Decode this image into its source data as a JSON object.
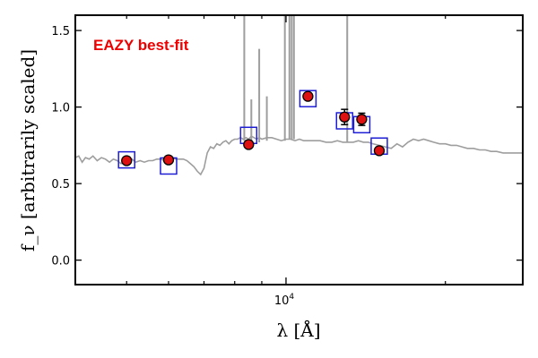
{
  "chart_data": {
    "type": "scatter",
    "annotation": "EAZY best-fit",
    "ylabel": "f_ν [arbitrarily scaled]",
    "xlabel": "λ [Å]",
    "xscale": "log",
    "xlim": [
      4000,
      28000
    ],
    "ylim": [
      -0.16,
      1.6
    ],
    "yticks": [
      0.0,
      0.5,
      1.0,
      1.5
    ],
    "ytick_labels": [
      "0.0",
      "0.5",
      "1.0",
      "1.5"
    ],
    "xticks_major": [
      10000
    ],
    "xtick_base": "10",
    "xtick_exp": "4",
    "xticks_minor": [
      5000,
      6000,
      7000,
      8000,
      9000,
      20000
    ],
    "colors": {
      "sed": "#9e9e9e",
      "model": "#1f1fd6",
      "obs_fill": "#dd1111",
      "obs_edge": "#000000",
      "annotation": "#ee0000"
    },
    "sed": {
      "x": [
        4000,
        4060,
        4120,
        4180,
        4250,
        4320,
        4400,
        4480,
        4560,
        4640,
        4720,
        4800,
        4880,
        4960,
        5040,
        5120,
        5200,
        5300,
        5400,
        5500,
        5600,
        5700,
        5800,
        5900,
        6000,
        6100,
        6200,
        6300,
        6400,
        6500,
        6600,
        6700,
        6800,
        6900,
        7000,
        7100,
        7200,
        7300,
        7400,
        7500,
        7600,
        7700,
        7800,
        7900,
        8000,
        8100,
        8200,
        8300,
        8400,
        8500,
        8600,
        8700,
        8800,
        8900,
        9000,
        9200,
        9400,
        9600,
        9800,
        10000,
        10200,
        10400,
        10600,
        10800,
        11000,
        11300,
        11600,
        11900,
        12200,
        12500,
        12800,
        13100,
        13400,
        13700,
        14000,
        14300,
        14600,
        15000,
        15400,
        15800,
        16200,
        16600,
        17000,
        17400,
        17800,
        18200,
        18600,
        19000,
        19500,
        20000,
        20500,
        21000,
        21500,
        22000,
        22600,
        23200,
        23800,
        24400,
        25000,
        25700,
        26400,
        27200,
        28000
      ],
      "y": [
        0.67,
        0.68,
        0.64,
        0.67,
        0.66,
        0.68,
        0.65,
        0.67,
        0.66,
        0.64,
        0.66,
        0.65,
        0.63,
        0.65,
        0.64,
        0.66,
        0.64,
        0.65,
        0.64,
        0.65,
        0.65,
        0.66,
        0.66,
        0.65,
        0.66,
        0.67,
        0.66,
        0.66,
        0.66,
        0.65,
        0.63,
        0.61,
        0.58,
        0.56,
        0.6,
        0.7,
        0.74,
        0.73,
        0.76,
        0.75,
        0.77,
        0.78,
        0.76,
        0.78,
        0.79,
        0.79,
        0.8,
        0.79,
        0.8,
        0.79,
        0.81,
        0.8,
        0.79,
        0.8,
        0.79,
        0.8,
        0.8,
        0.79,
        0.78,
        0.79,
        0.79,
        0.78,
        0.79,
        0.78,
        0.78,
        0.78,
        0.78,
        0.77,
        0.77,
        0.78,
        0.77,
        0.77,
        0.77,
        0.78,
        0.77,
        0.77,
        0.76,
        0.75,
        0.74,
        0.73,
        0.76,
        0.74,
        0.77,
        0.79,
        0.78,
        0.79,
        0.78,
        0.77,
        0.76,
        0.76,
        0.75,
        0.75,
        0.74,
        0.73,
        0.73,
        0.72,
        0.72,
        0.71,
        0.71,
        0.7,
        0.7,
        0.7,
        0.7
      ]
    },
    "emission_lines": [
      {
        "x": 8340,
        "ymin": 0.78,
        "ymax": 1.6
      },
      {
        "x": 8600,
        "ymin": 0.76,
        "ymax": 1.05
      },
      {
        "x": 8900,
        "ymin": 0.77,
        "ymax": 1.38
      },
      {
        "x": 9200,
        "ymin": 0.78,
        "ymax": 1.07
      },
      {
        "x": 9950,
        "ymin": 0.78,
        "ymax": 1.6
      },
      {
        "x": 10150,
        "ymin": 0.79,
        "ymax": 1.6
      },
      {
        "x": 10250,
        "ymin": 0.79,
        "ymax": 1.6
      },
      {
        "x": 10350,
        "ymin": 0.79,
        "ymax": 1.6
      },
      {
        "x": 13050,
        "ymin": 0.77,
        "ymax": 1.6
      }
    ],
    "model_photometry": {
      "x": [
        5000,
        6000,
        8500,
        11000,
        12900,
        13900,
        15000
      ],
      "y": [
        0.655,
        0.615,
        0.815,
        1.055,
        0.91,
        0.885,
        0.745
      ]
    },
    "observed": {
      "x": [
        5000,
        6000,
        8500,
        11000,
        12900,
        13900,
        15000
      ],
      "y": [
        0.65,
        0.655,
        0.755,
        1.07,
        0.935,
        0.92,
        0.715
      ],
      "yerr": [
        0.012,
        0.01,
        0.012,
        0.015,
        0.05,
        0.04,
        0.015
      ]
    }
  }
}
